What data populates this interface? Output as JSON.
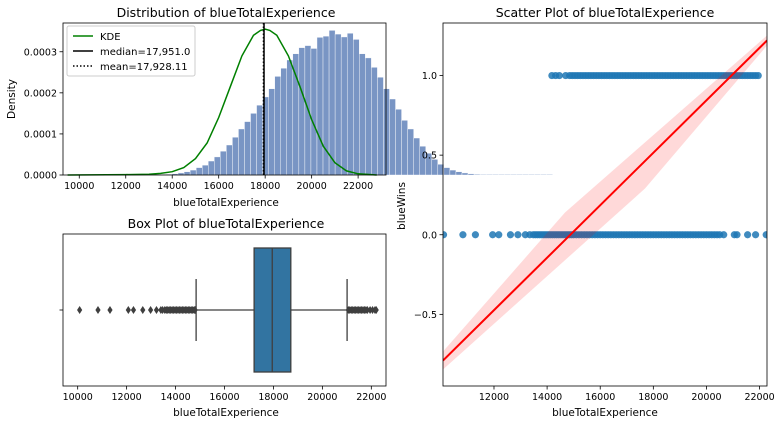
{
  "chart_data": [
    {
      "type": "histogram",
      "title": "Distribution of blueTotalExperience",
      "xlabel": "blueTotalExperience",
      "ylabel": "Density",
      "xlim": [
        9300,
        23200
      ],
      "ylim": [
        0,
        0.00037
      ],
      "xticks": [
        10000,
        12000,
        14000,
        16000,
        18000,
        20000,
        22000
      ],
      "yticks": [
        0.0,
        0.0001,
        0.0002,
        0.0003
      ],
      "xtick_labels": [
        "10000",
        "12000",
        "14000",
        "16000",
        "18000",
        "20000",
        "22000"
      ],
      "ytick_labels": [
        "0.0000",
        "0.0001",
        "0.0002",
        "0.0003"
      ],
      "bin_start": 10090,
      "bin_width": 260,
      "densities": [
        3e-07,
        0,
        0,
        0,
        0,
        0,
        0,
        0,
        3e-07,
        0,
        0,
        6e-07,
        8e-07,
        1e-06,
        2e-06,
        3e-06,
        5e-06,
        8e-06,
        1.2e-05,
        1.8e-05,
        2.4e-05,
        3.4e-05,
        4.4e-05,
        5.8e-05,
        7.3e-05,
        9.2e-05,
        0.000112,
        0.00013,
        0.00015,
        0.00017,
        0.00019,
        0.00021,
        0.00024,
        0.00026,
        0.00028,
        0.000295,
        0.00031,
        0.000315,
        0.000308,
        0.000335,
        0.000338,
        0.000352,
        0.000343,
        0.000336,
        0.000345,
        0.00033,
        0.000295,
        0.000285,
        0.000262,
        0.000238,
        0.00021,
        0.000185,
        0.00016,
        0.000133,
        0.000112,
        9e-05,
        7e-05,
        5.3e-05,
        3.8e-05,
        2.6e-05,
        1.8e-05,
        1.2e-05,
        8e-06,
        5e-06,
        3e-06,
        2e-06,
        1e-06,
        5e-07,
        4e-07,
        3e-07,
        3e-07,
        3e-07,
        3e-07,
        3e-07,
        3e-07,
        3e-07,
        3e-07,
        3e-07
      ],
      "kde": {
        "x": [
          9500,
          12000,
          13000,
          13500,
          14000,
          14500,
          15000,
          15500,
          16000,
          16500,
          17000,
          17500,
          17800,
          18000,
          18200,
          18500,
          19000,
          19500,
          20000,
          20500,
          21000,
          21500,
          22000,
          22800
        ],
        "y": [
          0.0,
          1e-06,
          2e-06,
          4e-06,
          8e-06,
          1.8e-05,
          4e-05,
          7.8e-05,
          0.00014,
          0.000215,
          0.00029,
          0.00034,
          0.000352,
          0.000355,
          0.000352,
          0.00034,
          0.00029,
          0.000215,
          0.000135,
          7e-05,
          3e-05,
          1e-05,
          3e-06,
          0.0
        ]
      },
      "median": 17951.0,
      "mean": 17928.11,
      "legend": [
        {
          "label": "KDE",
          "style": "line",
          "color": "#008000"
        },
        {
          "label": "median=17,951.0",
          "style": "solid",
          "color": "#000000"
        },
        {
          "label": "mean=17,928.11",
          "style": "dotted",
          "color": "#000000"
        }
      ],
      "legend_position": "upper left",
      "bar_color": "#4c72b0"
    },
    {
      "type": "box",
      "title": "Box Plot of blueTotalExperience",
      "xlabel": "blueTotalExperience",
      "xlim": [
        9400,
        22600
      ],
      "xticks": [
        10000,
        12000,
        14000,
        16000,
        18000,
        20000,
        22000
      ],
      "xtick_labels": [
        "10000",
        "12000",
        "14000",
        "16000",
        "18000",
        "20000",
        "22000"
      ],
      "q1": 17210,
      "median": 17951,
      "q3": 18710,
      "whisker_low": 14840,
      "whisker_high": 21010,
      "outliers": [
        10080,
        10830,
        11320,
        12070,
        12280,
        12660,
        12980,
        13220,
        13400,
        13470,
        13560,
        13620,
        13680,
        13740,
        13800,
        13860,
        13920,
        13980,
        14040,
        14100,
        14160,
        14220,
        14280,
        14340,
        14400,
        14460,
        14520,
        14580,
        14640,
        14700,
        14760,
        14800,
        21060,
        21120,
        21180,
        21240,
        21300,
        21360,
        21420,
        21480,
        21540,
        21600,
        21660,
        21720,
        21780,
        21840,
        21950,
        22050,
        22150,
        22200
      ],
      "box_color": "#3274a1"
    },
    {
      "type": "scatter",
      "title": "Scatter Plot of blueTotalExperience",
      "xlabel": "blueTotalExperience",
      "ylabel": "blueWins",
      "xlim": [
        10080,
        22280
      ],
      "ylim": [
        -0.95,
        1.33
      ],
      "xticks": [
        12000,
        14000,
        16000,
        18000,
        20000,
        22000
      ],
      "yticks": [
        -0.5,
        0.0,
        0.5,
        1.0
      ],
      "xtick_labels": [
        "12000",
        "14000",
        "16000",
        "18000",
        "20000",
        "22000"
      ],
      "ytick_labels": [
        "−0.5",
        "0.0",
        "0.5",
        "1.0"
      ],
      "points_y1": [
        14180,
        14320,
        14460,
        14700,
        14850,
        14950,
        15050,
        15150,
        15250,
        15350,
        15450,
        15550,
        15650,
        15750,
        15850,
        15950,
        16050,
        16150,
        16250,
        16350,
        16450,
        16550,
        16650,
        16750,
        16850,
        16950,
        17050,
        17150,
        17250,
        17350,
        17450,
        17550,
        17650,
        17750,
        17850,
        17950,
        18050,
        18150,
        18250,
        18350,
        18450,
        18550,
        18650,
        18750,
        18850,
        18950,
        19050,
        19150,
        19250,
        19350,
        19450,
        19550,
        19650,
        19750,
        19850,
        19950,
        20050,
        20150,
        20250,
        20350,
        20450,
        20550,
        20650,
        20750,
        20850,
        20950,
        21050,
        21150,
        21250,
        21350,
        21450,
        21550,
        21650,
        21750,
        21850,
        21950
      ],
      "points_y0": [
        10100,
        10830,
        11300,
        11950,
        12180,
        12620,
        12900,
        13180,
        13350,
        13480,
        13560,
        13640,
        13720,
        13800,
        13880,
        13960,
        14040,
        14120,
        14200,
        14280,
        14360,
        14440,
        14520,
        14600,
        14680,
        14760,
        14840,
        14920,
        15000,
        15100,
        15200,
        15300,
        15400,
        15500,
        15600,
        15700,
        15800,
        15900,
        16000,
        16100,
        16200,
        16300,
        16400,
        16500,
        16600,
        16700,
        16800,
        16900,
        17000,
        17100,
        17200,
        17300,
        17400,
        17500,
        17600,
        17700,
        17800,
        17900,
        18000,
        18100,
        18200,
        18300,
        18400,
        18500,
        18600,
        18700,
        18800,
        18900,
        19000,
        19100,
        19200,
        19300,
        19400,
        19500,
        19600,
        19700,
        19800,
        19900,
        20000,
        20100,
        20200,
        20300,
        20400,
        20500,
        20650,
        21050,
        21150,
        21550,
        21850,
        22250
      ],
      "regression": {
        "x": [
          10080,
          22280
        ],
        "y": [
          -0.79,
          1.22
        ]
      },
      "point_color": "#1f77b4",
      "line_color": "#ff0000"
    }
  ]
}
